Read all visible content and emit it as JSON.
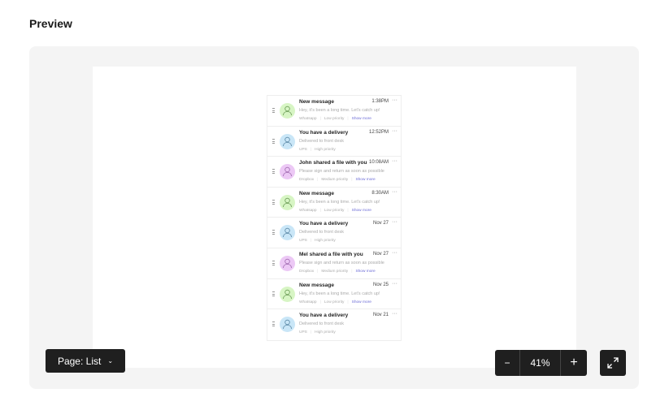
{
  "header": {
    "title": "Preview"
  },
  "colors": {
    "green": "#d7f5c4",
    "blue": "#c9e6f7",
    "purple": "#ecc8f5",
    "accent": "#6b6bd6"
  },
  "notifications": [
    {
      "title": "New message",
      "time": "1:38PM",
      "body": "Hey, it's been a long time. Let's catch up!",
      "source": "Whatsapp",
      "priority": "Low priority",
      "more": "Show more",
      "avatar": "green"
    },
    {
      "title": "You have a delivery",
      "time": "12:52PM",
      "body": "Delivered to front desk",
      "source": "UPS",
      "priority": "High priority",
      "avatar": "blue"
    },
    {
      "title": "John shared a file with you",
      "time": "10:08AM",
      "body": "Please sign and return as soon as possible",
      "source": "Dropbox",
      "priority": "Medium priority",
      "more": "Show more",
      "avatar": "purple"
    },
    {
      "title": "New message",
      "time": "8:30AM",
      "body": "Hey, it's been a long time. Let's catch up!",
      "source": "Whatsapp",
      "priority": "Low priority",
      "more": "Show more",
      "avatar": "green"
    },
    {
      "title": "You have a delivery",
      "time": "Nov 27",
      "body": "Delivered to front desk",
      "source": "UPS",
      "priority": "High priority",
      "avatar": "blue"
    },
    {
      "title": "Mel shared a file with you",
      "time": "Nov 27",
      "body": "Please sign and return as soon as possible",
      "source": "Dropbox",
      "priority": "Medium priority",
      "more": "Show more",
      "avatar": "purple"
    },
    {
      "title": "New message",
      "time": "Nov 25",
      "body": "Hey, it's been a long time. Let's catch up!",
      "source": "Whatsapp",
      "priority": "Low priority",
      "more": "Show more",
      "avatar": "green"
    },
    {
      "title": "You have a delivery",
      "time": "Nov 21",
      "body": "Delivered to front desk",
      "source": "UPS",
      "priority": "High priority",
      "avatar": "blue"
    }
  ],
  "controls": {
    "page_label": "Page: List",
    "zoom": "41%",
    "minus": "−",
    "plus": "+",
    "dots": "···"
  }
}
